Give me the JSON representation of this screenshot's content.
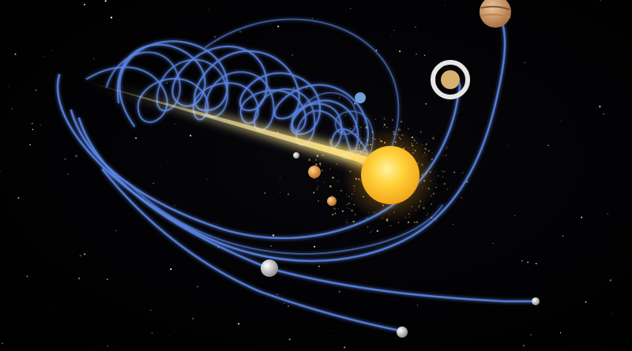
{
  "scene": {
    "subject": "solar-system-helical-motion",
    "colors": {
      "background": "#000000",
      "orbit_trail": "#5b86e6",
      "orbit_glow": "#8fb0ff",
      "sun_core": "#ffd23a",
      "sun_edge": "#f2a51a",
      "comet_tail": "#fff0b0",
      "dust": "#f5c85a"
    },
    "bodies": [
      {
        "name": "sun",
        "icon": "sun-icon"
      },
      {
        "name": "mercury",
        "icon": "planet-icon"
      },
      {
        "name": "venus",
        "icon": "planet-icon"
      },
      {
        "name": "earth",
        "icon": "planet-icon"
      },
      {
        "name": "mars",
        "icon": "planet-icon"
      },
      {
        "name": "jupiter",
        "icon": "planet-icon"
      },
      {
        "name": "saturn",
        "icon": "ringed-planet-icon"
      },
      {
        "name": "uranus",
        "icon": "planet-icon"
      },
      {
        "name": "neptune",
        "icon": "planet-icon"
      }
    ]
  }
}
